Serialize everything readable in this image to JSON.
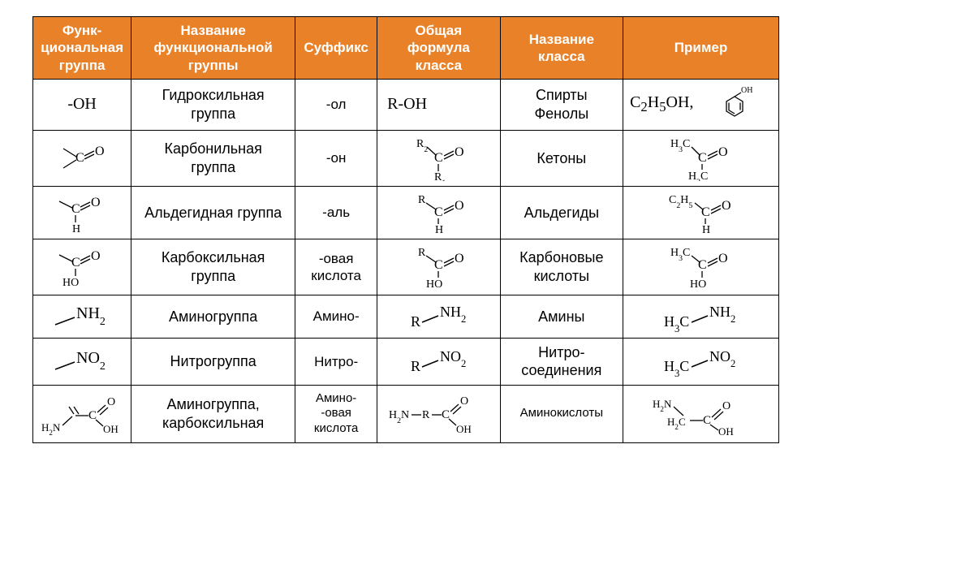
{
  "table": {
    "header_bg": "#e88127",
    "header_color": "#ffffff",
    "border_color": "#000000",
    "columns": [
      "Функ-\nциональная\nгруппа",
      "Название\nфункциональной\nгруппы",
      "Суффикс",
      "Общая\nформула\nкласса",
      "Название\nкласса",
      "Пример"
    ],
    "rows": [
      {
        "group_text": "-OH",
        "name": "Гидроксильная\nгруппа",
        "suffix": "-ол",
        "formula_text": "R-OH",
        "class": "Спирты\nФенолы",
        "example_prefix": "C₂H₅OH,",
        "example_label": "OH"
      },
      {
        "name": "Карбонильная\nгруппа",
        "suffix": "-он",
        "class": "Кетоны",
        "formula_labels": {
          "top": "R₂",
          "bottom": "R₁",
          "right": "O"
        },
        "example_labels": {
          "top": "H₃C",
          "bottom": "H₃C",
          "right": "O"
        }
      },
      {
        "name": "Альдегидная группа",
        "suffix": "-аль",
        "class": "Альдегиды",
        "group_labels": {
          "bottom": "H",
          "right": "O"
        },
        "formula_labels": {
          "top": "R",
          "bottom": "H",
          "right": "O"
        },
        "example_labels": {
          "top": "C₂H₅",
          "bottom": "H",
          "right": "O"
        }
      },
      {
        "name": "Карбоксильная\nгруппа",
        "suffix": "-овая\nкислота",
        "class": "Карбоновые\nкислоты",
        "group_labels": {
          "bottom": "HO",
          "right": "O"
        },
        "formula_labels": {
          "top": "R",
          "bottom": "HO",
          "right": "O"
        },
        "example_labels": {
          "top": "H₃C",
          "bottom": "HO",
          "right": "O"
        }
      },
      {
        "group_text": "NH₂",
        "name": "Аминогруппа",
        "suffix": "Амино-",
        "class": "Амины",
        "formula_text_l": "R",
        "formula_text_r": "NH₂",
        "example_text_l": "H₃C",
        "example_text_r": "NH₂"
      },
      {
        "group_text": "NO₂",
        "name": "Нитрогруппа",
        "suffix": "Нитро-",
        "class": "Нитро-\nсоединения",
        "formula_text_l": "R",
        "formula_text_r": "NO₂",
        "example_text_l": "H₃C",
        "example_text_r": "NO₂"
      },
      {
        "name": "Аминогруппа,\nкарбоксильная",
        "suffix": "Амино-\n-овая\nкислота",
        "class": "Аминокислоты",
        "group_labels": {
          "nh2": "H₂N",
          "oh": "OH",
          "o": "O"
        },
        "formula_labels": {
          "nh2": "H₂N",
          "r": "R",
          "oh": "OH",
          "o": "O"
        },
        "example_labels": {
          "nh2": "H₂N",
          "ch2": "H₂C",
          "oh": "OH",
          "o": "O"
        }
      }
    ]
  }
}
